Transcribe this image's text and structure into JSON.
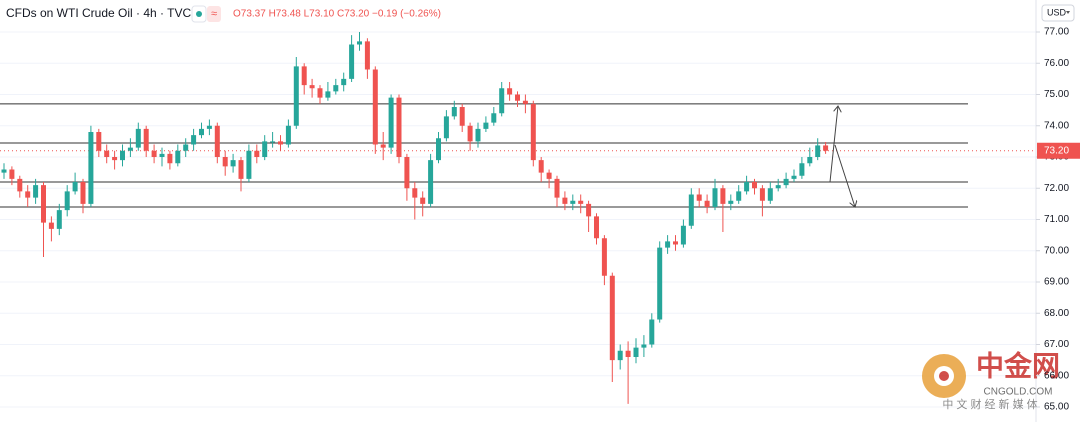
{
  "chart_data": {
    "type": "candlestick",
    "title": "CFDs on WTI Crude Oil · 4h · TVC",
    "badge": "≈",
    "ohlc_label": "O73.37 H73.48 L73.10 C73.20 −0.19 (−0.26%)",
    "currency": "USD",
    "up_color": "#26a69a",
    "down_color": "#ef5350",
    "ylim": [
      64.8,
      77.4
    ],
    "yticks": [
      {
        "value": 65,
        "label": "65.00"
      },
      {
        "value": 66,
        "label": "66.00"
      },
      {
        "value": 67,
        "label": "67.00"
      },
      {
        "value": 68,
        "label": "68.00"
      },
      {
        "value": 69,
        "label": "69.00"
      },
      {
        "value": 70,
        "label": "70.00"
      },
      {
        "value": 71,
        "label": "71.00"
      },
      {
        "value": 72,
        "label": "72.00"
      },
      {
        "value": 73,
        "label": "73.00"
      },
      {
        "value": 74,
        "label": "74.00"
      },
      {
        "value": 75,
        "label": "75.00"
      },
      {
        "value": 76,
        "label": "76.00"
      },
      {
        "value": 77,
        "label": "77.00"
      }
    ],
    "grid": true,
    "levels": [
      74.7,
      73.45,
      72.2,
      71.4
    ],
    "last_price": {
      "value": 73.2,
      "label": "73.20"
    },
    "open": [
      72.5,
      72.6,
      72.3,
      71.9,
      71.7,
      72.1,
      70.9,
      70.7,
      71.3,
      71.9,
      72.2,
      71.5,
      73.8,
      73.2,
      73.0,
      72.9,
      73.2,
      73.3,
      73.9,
      73.2,
      73.0,
      73.1,
      72.8,
      73.2,
      73.4,
      73.7,
      73.9,
      74.0,
      73.0,
      72.7,
      72.9,
      72.3,
      73.2,
      73.0,
      73.5,
      73.5,
      73.4,
      74.0,
      75.9,
      75.3,
      75.2,
      74.9,
      75.1,
      75.3,
      75.5,
      76.6,
      76.7,
      75.8,
      73.4,
      73.3,
      74.9,
      73.0,
      72.0,
      71.7,
      71.5,
      72.9,
      73.6,
      74.3,
      74.6,
      74.0,
      73.5,
      73.9,
      74.1,
      74.4,
      75.2,
      75.0,
      74.8,
      74.7,
      72.9,
      72.5,
      72.3,
      71.7,
      71.5,
      71.6,
      71.5,
      71.1,
      70.4,
      69.2,
      66.5,
      66.8,
      66.6,
      66.9,
      67.0,
      67.8,
      70.1,
      70.3,
      70.2,
      70.8,
      71.8,
      71.6,
      71.4,
      72.0,
      71.5,
      71.6,
      71.9,
      72.2,
      72.0,
      71.6,
      72.0,
      72.1,
      72.3,
      72.4,
      72.8,
      73.0,
      73.37
    ],
    "high": [
      72.8,
      72.7,
      72.4,
      72.1,
      72.3,
      72.2,
      71.1,
      71.5,
      72.1,
      72.5,
      72.3,
      74.0,
      73.9,
      73.4,
      73.2,
      73.4,
      73.6,
      74.1,
      74.0,
      73.4,
      73.3,
      73.2,
      73.4,
      73.6,
      73.9,
      74.1,
      74.2,
      74.1,
      73.2,
      73.1,
      73.0,
      73.4,
      73.4,
      73.7,
      73.8,
      73.7,
      74.2,
      76.2,
      76.0,
      75.5,
      75.3,
      75.4,
      75.5,
      75.7,
      76.9,
      77.0,
      76.8,
      75.9,
      73.8,
      75.0,
      75.0,
      73.1,
      72.2,
      71.9,
      73.1,
      73.8,
      74.5,
      74.8,
      74.7,
      74.1,
      74.1,
      74.3,
      74.6,
      75.4,
      75.4,
      75.1,
      75.0,
      74.8,
      73.0,
      72.6,
      72.4,
      71.9,
      71.8,
      71.8,
      71.6,
      71.2,
      70.5,
      69.3,
      67.0,
      67.1,
      67.2,
      67.3,
      68.0,
      70.3,
      70.5,
      70.5,
      71.0,
      72.0,
      72.0,
      71.8,
      72.3,
      72.1,
      71.8,
      72.1,
      72.4,
      72.3,
      72.1,
      72.2,
      72.3,
      72.5,
      72.6,
      73.0,
      73.3,
      73.6,
      73.48
    ],
    "low": [
      72.3,
      72.1,
      71.7,
      71.4,
      71.5,
      69.8,
      70.3,
      70.5,
      71.1,
      71.8,
      71.2,
      71.4,
      73.0,
      72.8,
      72.6,
      72.7,
      73.0,
      73.2,
      73.0,
      72.8,
      72.7,
      72.6,
      72.7,
      73.0,
      73.2,
      73.6,
      73.7,
      72.8,
      72.4,
      72.5,
      71.9,
      72.2,
      72.8,
      72.9,
      73.3,
      73.2,
      73.3,
      73.9,
      75.0,
      74.9,
      74.7,
      74.8,
      75.0,
      75.1,
      75.4,
      76.4,
      75.5,
      73.1,
      72.9,
      73.1,
      72.8,
      71.6,
      71.0,
      71.1,
      71.4,
      72.8,
      73.5,
      74.2,
      73.8,
      73.2,
      73.3,
      73.8,
      74.0,
      74.3,
      74.8,
      74.6,
      74.4,
      72.7,
      72.2,
      72.0,
      71.4,
      71.3,
      71.3,
      71.2,
      70.6,
      70.2,
      68.9,
      65.8,
      66.2,
      65.1,
      66.4,
      66.6,
      66.9,
      67.7,
      69.9,
      70.0,
      70.1,
      70.7,
      71.4,
      71.2,
      71.3,
      70.6,
      71.3,
      71.5,
      71.8,
      71.8,
      71.1,
      71.5,
      71.9,
      72.0,
      72.2,
      72.3,
      72.7,
      72.9,
      73.1
    ],
    "close": [
      72.6,
      72.3,
      71.9,
      71.7,
      72.1,
      70.9,
      70.7,
      71.3,
      71.9,
      72.2,
      71.5,
      73.8,
      73.2,
      73.0,
      72.9,
      73.2,
      73.3,
      73.9,
      73.2,
      73.0,
      73.1,
      72.8,
      73.2,
      73.4,
      73.7,
      73.9,
      74.0,
      73.0,
      72.7,
      72.9,
      72.3,
      73.2,
      73.0,
      73.5,
      73.5,
      73.4,
      74.0,
      75.9,
      75.3,
      75.2,
      74.9,
      75.1,
      75.3,
      75.5,
      76.6,
      76.7,
      75.8,
      73.4,
      73.3,
      74.9,
      73.0,
      72.0,
      71.7,
      71.5,
      72.9,
      73.6,
      74.3,
      74.6,
      74.0,
      73.5,
      73.9,
      74.1,
      74.4,
      75.2,
      75.0,
      74.8,
      74.7,
      72.9,
      72.5,
      72.3,
      71.7,
      71.5,
      71.6,
      71.5,
      71.1,
      70.4,
      69.2,
      66.5,
      66.8,
      66.6,
      66.9,
      67.0,
      67.8,
      70.1,
      70.3,
      70.2,
      70.8,
      71.8,
      71.6,
      71.4,
      72.0,
      71.5,
      71.6,
      71.9,
      72.2,
      72.0,
      71.6,
      72.0,
      72.1,
      72.3,
      72.4,
      72.8,
      73.0,
      73.37,
      73.2
    ]
  },
  "watermark": {
    "brand": "中金网",
    "site": "CNGOLD.COM",
    "slogan": "中 文 财 经 新 媒 体"
  }
}
